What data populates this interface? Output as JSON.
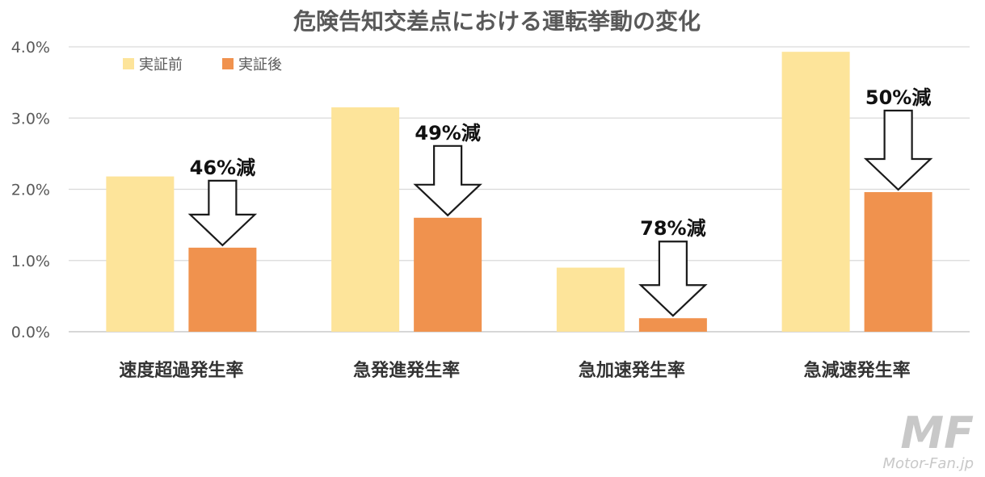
{
  "chart_data": {
    "type": "bar",
    "title": "危険告知交差点における運転挙動の変化",
    "categories": [
      "速度超過発生率",
      "急発進発生率",
      "急加速発生率",
      "急減速発生率"
    ],
    "series": [
      {
        "name": "実証前",
        "values": [
          2.18,
          3.15,
          0.9,
          3.93
        ],
        "color": "#fde49a"
      },
      {
        "name": "実証後",
        "values": [
          1.18,
          1.6,
          0.19,
          1.96
        ],
        "color": "#f0924e"
      }
    ],
    "ylim": [
      0,
      4.0
    ],
    "yticks": [
      "0.0%",
      "1.0%",
      "2.0%",
      "3.0%",
      "4.0%"
    ],
    "annotations": [
      "46%減",
      "49%減",
      "78%減",
      "50%減"
    ],
    "grid": true,
    "legend": "top-left"
  },
  "watermark": {
    "logo": "MF",
    "text": "Motor-Fan.jp"
  }
}
